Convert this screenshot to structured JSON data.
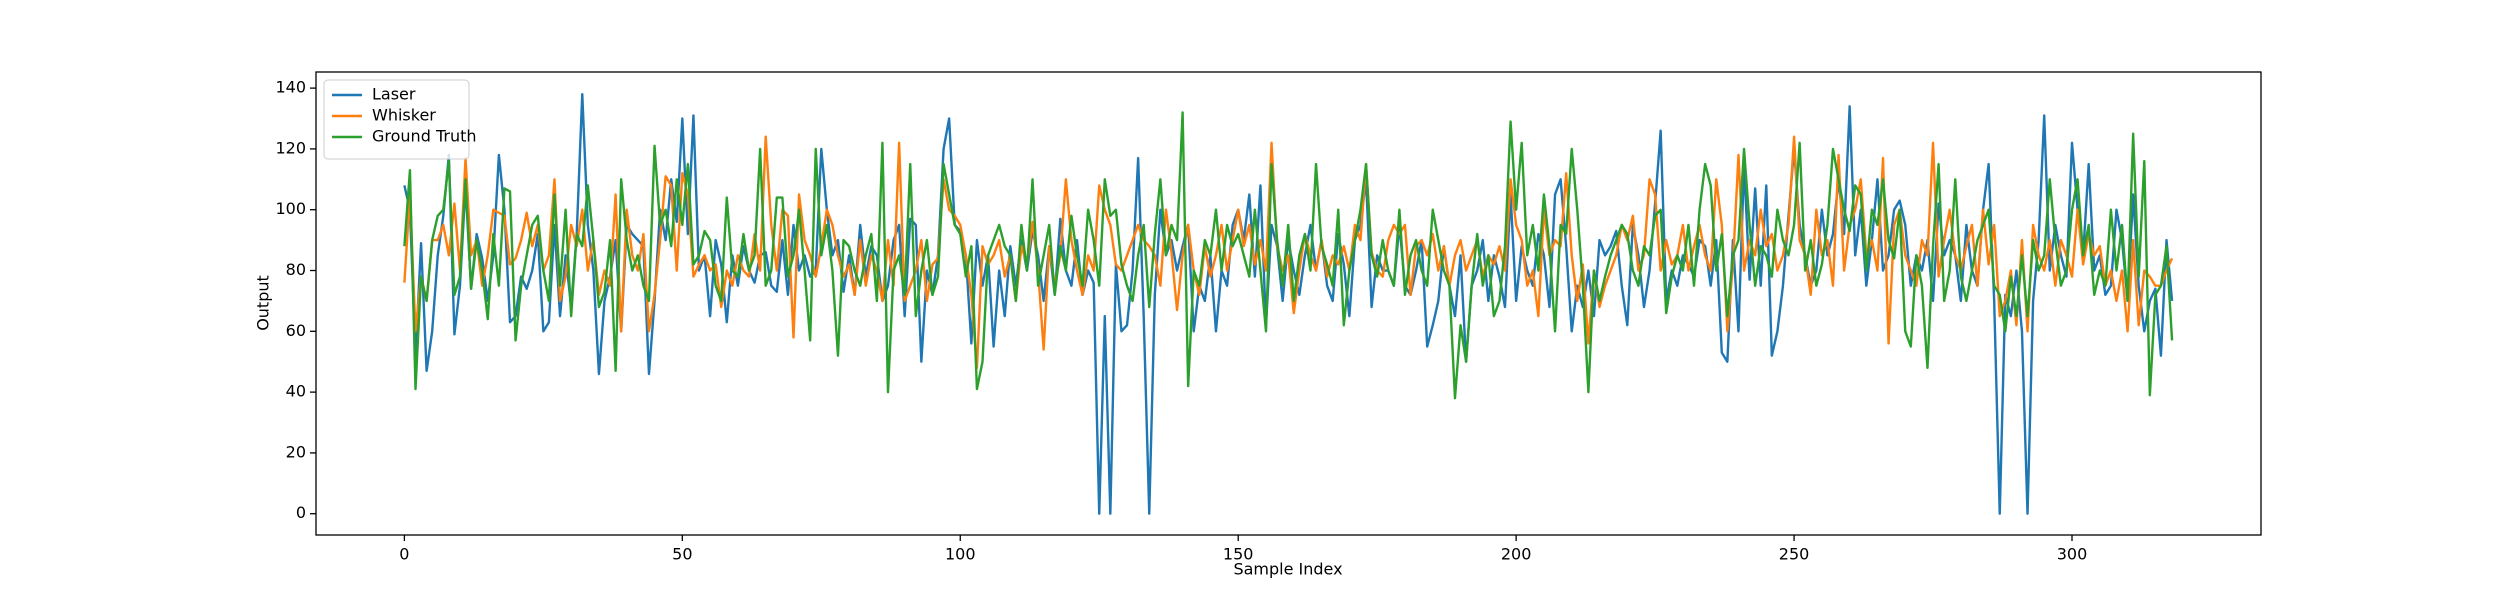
{
  "chart_data": {
    "type": "line",
    "xlabel": "Sample Index",
    "ylabel": "Output",
    "xlim": [
      -15.9,
      334
    ],
    "xticks": [
      0,
      50,
      100,
      150,
      200,
      250,
      300
    ],
    "ylim": [
      -7,
      145.3
    ],
    "yticks": [
      0,
      20,
      40,
      60,
      80,
      100,
      120,
      140
    ],
    "legend": "upper left",
    "x": [
      0,
      1,
      2,
      3,
      4,
      5,
      6,
      7,
      8,
      9,
      10,
      11,
      12,
      13,
      14,
      15,
      16,
      17,
      18,
      19,
      20,
      21,
      22,
      23,
      24,
      25,
      26,
      27,
      28,
      29,
      30,
      31,
      32,
      33,
      34,
      35,
      36,
      37,
      38,
      39,
      40,
      41,
      42,
      43,
      44,
      45,
      46,
      47,
      48,
      49,
      50,
      51,
      52,
      53,
      54,
      55,
      56,
      57,
      58,
      59,
      60,
      61,
      62,
      63,
      64,
      65,
      66,
      67,
      68,
      69,
      70,
      71,
      72,
      73,
      74,
      75,
      76,
      77,
      78,
      79,
      80,
      81,
      82,
      83,
      84,
      85,
      86,
      87,
      88,
      89,
      90,
      91,
      92,
      93,
      94,
      95,
      96,
      97,
      98,
      99,
      100,
      101,
      102,
      103,
      104,
      105,
      106,
      107,
      108,
      109,
      110,
      111,
      112,
      113,
      114,
      115,
      116,
      117,
      118,
      119,
      120,
      121,
      122,
      123,
      124,
      125,
      126,
      127,
      128,
      129,
      130,
      131,
      132,
      133,
      134,
      135,
      136,
      137,
      138,
      139,
      140,
      141,
      142,
      143,
      144,
      145,
      146,
      147,
      148,
      149,
      150,
      151,
      152,
      153,
      154,
      155,
      156,
      157,
      158,
      159,
      160,
      161,
      162,
      163,
      164,
      165,
      166,
      167,
      168,
      169,
      170,
      171,
      172,
      173,
      174,
      175,
      176,
      177,
      178,
      179,
      180,
      181,
      182,
      183,
      184,
      185,
      186,
      187,
      188,
      189,
      190,
      191,
      192,
      193,
      194,
      195,
      196,
      197,
      198,
      199,
      200,
      201,
      202,
      203,
      204,
      205,
      206,
      207,
      208,
      209,
      210,
      211,
      212,
      213,
      214,
      215,
      216,
      217,
      218,
      219,
      220,
      221,
      222,
      223,
      224,
      225,
      226,
      227,
      228,
      229,
      230,
      231,
      232,
      233,
      234,
      235,
      236,
      237,
      238,
      239,
      240,
      241,
      242,
      243,
      244,
      245,
      246,
      247,
      248,
      249,
      250,
      251,
      252,
      253,
      254,
      255,
      256,
      257,
      258,
      259,
      260,
      261,
      262,
      263,
      264,
      265,
      266,
      267,
      268,
      269,
      270,
      271,
      272,
      273,
      274,
      275,
      276,
      277,
      278,
      279,
      280,
      281,
      282,
      283,
      284,
      285,
      286,
      287,
      288,
      289,
      290,
      291,
      292,
      293,
      294,
      295,
      296,
      297,
      298,
      299,
      300,
      301,
      302,
      303,
      304,
      305,
      306,
      307,
      308,
      309,
      310,
      311,
      312,
      313,
      314,
      315,
      316,
      317,
      318
    ],
    "series": [
      {
        "name": "Laser",
        "color": "#1f77b4",
        "values": [
          108,
          100,
          52,
          89,
          47,
          60,
          85,
          98,
          118,
          59,
          75,
          108,
          74,
          92,
          84,
          70,
          85,
          118,
          100,
          63,
          65,
          78,
          74,
          80,
          92,
          60,
          63,
          95,
          65,
          85,
          68,
          92,
          138,
          95,
          80,
          46,
          70,
          78,
          90,
          60,
          95,
          92,
          90,
          88,
          46,
          70,
          100,
          90,
          110,
          96,
          130,
          92,
          131,
          80,
          85,
          65,
          90,
          82,
          63,
          85,
          75,
          88,
          80,
          76,
          85,
          86,
          75,
          73,
          90,
          72,
          95,
          80,
          85,
          78,
          80,
          120,
          100,
          85,
          90,
          73,
          85,
          72,
          95,
          78,
          88,
          85,
          70,
          75,
          90,
          95,
          65,
          97,
          95,
          50,
          80,
          72,
          85,
          120,
          130,
          95,
          93,
          85,
          56,
          90,
          75,
          85,
          55,
          80,
          65,
          88,
          75,
          90,
          80,
          93,
          85,
          70,
          88,
          72,
          97,
          80,
          75,
          90,
          72,
          80,
          76,
          0,
          65,
          0,
          82,
          60,
          62,
          80,
          117,
          65,
          0,
          72,
          100,
          85,
          90,
          80,
          88,
          95,
          60,
          75,
          70,
          85,
          60,
          80,
          75,
          95,
          100,
          90,
          105,
          78,
          108,
          62,
          95,
          88,
          70,
          90,
          80,
          72,
          85,
          95,
          80,
          90,
          75,
          70,
          92,
          82,
          65,
          90,
          95,
          110,
          68,
          85,
          80,
          80,
          75,
          95,
          75,
          72,
          80,
          90,
          55,
          62,
          70,
          88,
          75,
          65,
          85,
          50,
          75,
          80,
          90,
          70,
          85,
          78,
          68,
          105,
          70,
          88,
          80,
          75,
          92,
          85,
          68,
          105,
          110,
          88,
          60,
          75,
          68,
          80,
          65,
          90,
          85,
          88,
          93,
          75,
          62,
          95,
          85,
          68,
          80,
          102,
          126,
          70,
          80,
          75,
          85,
          82,
          78,
          90,
          88,
          75,
          90,
          53,
          50,
          90,
          60,
          115,
          77,
          107,
          75,
          108,
          52,
          60,
          75,
          98,
          120,
          95,
          85,
          75,
          80,
          100,
          85,
          92,
          110,
          92,
          134,
          85,
          100,
          75,
          90,
          110,
          80,
          85,
          100,
          103,
          95,
          75,
          85,
          80,
          90,
          70,
          102,
          85,
          90,
          85,
          70,
          95,
          80,
          75,
          100,
          115,
          70,
          0,
          72,
          65,
          80,
          60,
          0,
          70,
          90,
          131,
          80,
          95,
          85,
          78,
          122,
          100,
          85,
          115,
          80,
          85,
          72,
          75,
          100,
          90,
          70,
          105,
          75,
          60,
          70,
          74,
          52,
          90,
          70
        ]
      },
      {
        "name": "Whisker",
        "color": "#ff7f0e",
        "values": [
          76,
          105,
          60,
          78,
          70,
          90,
          90,
          95,
          85,
          102,
          80,
          117,
          85,
          90,
          75,
          85,
          100,
          99,
          98,
          82,
          84,
          90,
          99,
          88,
          95,
          80,
          85,
          110,
          70,
          78,
          95,
          88,
          100,
          80,
          90,
          72,
          80,
          75,
          105,
          60,
          100,
          85,
          80,
          92,
          60,
          72,
          90,
          111,
          108,
          80,
          112,
          105,
          78,
          82,
          85,
          80,
          82,
          68,
          80,
          75,
          85,
          80,
          78,
          92,
          80,
          124,
          95,
          80,
          100,
          98,
          58,
          105,
          90,
          85,
          78,
          88,
          100,
          95,
          85,
          78,
          82,
          72,
          90,
          75,
          85,
          80,
          70,
          90,
          75,
          122,
          70,
          75,
          80,
          90,
          70,
          82,
          84,
          110,
          100,
          98,
          95,
          85,
          72,
          48,
          88,
          82,
          85,
          90,
          78,
          85,
          70,
          88,
          82,
          96,
          80,
          54,
          88,
          75,
          85,
          110,
          90,
          80,
          72,
          85,
          80,
          108,
          100,
          95,
          82,
          80,
          85,
          90,
          95,
          90,
          88,
          85,
          75,
          100,
          86,
          67,
          85,
          95,
          80,
          72,
          88,
          78,
          85,
          95,
          80,
          90,
          100,
          88,
          95,
          82,
          90,
          80,
          122,
          88,
          80,
          85,
          66,
          80,
          92,
          85,
          80,
          90,
          78,
          85,
          82,
          88,
          80,
          95,
          90,
          115,
          86,
          80,
          78,
          90,
          95,
          92,
          95,
          72,
          88,
          90,
          85,
          92,
          80,
          88,
          75,
          85,
          90,
          80,
          85,
          90,
          78,
          85,
          82,
          88,
          80,
          110,
          95,
          90,
          75,
          80,
          65,
          100,
          85,
          90,
          88,
          112,
          85,
          70,
          82,
          56,
          80,
          68,
          75,
          80,
          85,
          95,
          90,
          98,
          80,
          85,
          110,
          105,
          80,
          90,
          82,
          85,
          95,
          80,
          88,
          95,
          85,
          80,
          110,
          95,
          60,
          82,
          118,
          80,
          90,
          85,
          100,
          88,
          92,
          80,
          85,
          95,
          124,
          90,
          85,
          72,
          100,
          85,
          90,
          75,
          118,
          80,
          95,
          100,
          110,
          85,
          90,
          80,
          117,
          56,
          95,
          100,
          85,
          80,
          75,
          90,
          85,
          122,
          78,
          90,
          100,
          85,
          80,
          88,
          95,
          75,
          100,
          82,
          95,
          65,
          70,
          80,
          62,
          90,
          60,
          95,
          85,
          80,
          90,
          75,
          90,
          85,
          78,
          100,
          82,
          92,
          85,
          88,
          75,
          80,
          70,
          80,
          60,
          90,
          62,
          80,
          78,
          75,
          75,
          80,
          84
        ]
      },
      {
        "name": "Ground Truth",
        "color": "#2ca02c",
        "values": [
          88,
          113,
          41,
          78,
          70,
          90,
          98,
          100,
          116,
          72,
          78,
          110,
          74,
          90,
          80,
          64,
          92,
          75,
          107,
          106,
          57,
          75,
          85,
          95,
          98,
          80,
          70,
          105,
          75,
          100,
          65,
          92,
          88,
          108,
          90,
          68,
          73,
          90,
          47,
          110,
          90,
          80,
          85,
          75,
          70,
          121,
          95,
          100,
          88,
          110,
          95,
          115,
          82,
          85,
          93,
          90,
          75,
          70,
          104,
          80,
          78,
          92,
          80,
          85,
          120,
          75,
          80,
          104,
          104,
          78,
          85,
          100,
          80,
          57,
          120,
          85,
          95,
          80,
          52,
          90,
          88,
          80,
          75,
          85,
          92,
          70,
          122,
          40,
          80,
          85,
          72,
          115,
          65,
          80,
          90,
          72,
          78,
          115,
          105,
          95,
          92,
          78,
          88,
          41,
          50,
          85,
          90,
          95,
          88,
          85,
          70,
          95,
          80,
          110,
          75,
          85,
          95,
          72,
          88,
          80,
          98,
          85,
          75,
          100,
          90,
          75,
          110,
          98,
          100,
          82,
          75,
          70,
          85,
          95,
          68,
          92,
          110,
          85,
          95,
          90,
          132,
          42,
          80,
          75,
          90,
          85,
          100,
          80,
          95,
          88,
          92,
          85,
          78,
          100,
          80,
          60,
          115,
          90,
          75,
          95,
          70,
          85,
          92,
          80,
          115,
          88,
          82,
          75,
          100,
          62,
          80,
          90,
          100,
          115,
          85,
          78,
          90,
          80,
          75,
          100,
          72,
          85,
          90,
          80,
          75,
          100,
          90,
          80,
          75,
          38,
          62,
          50,
          75,
          92,
          75,
          85,
          65,
          70,
          88,
          129,
          100,
          122,
          85,
          95,
          80,
          105,
          88,
          60,
          95,
          92,
          120,
          100,
          75,
          40,
          80,
          70,
          78,
          85,
          90,
          95,
          92,
          80,
          75,
          88,
          85,
          98,
          100,
          66,
          78,
          85,
          80,
          95,
          75,
          100,
          115,
          108,
          80,
          92,
          65,
          85,
          90,
          120,
          95,
          75,
          88,
          85,
          78,
          100,
          90,
          85,
          95,
          122,
          80,
          90,
          75,
          82,
          95,
          120,
          110,
          100,
          93,
          108,
          105,
          80,
          100,
          95,
          110,
          90,
          84,
          100,
          60,
          55,
          85,
          75,
          48,
          88,
          115,
          70,
          80,
          110,
          78,
          70,
          80,
          90,
          95,
          100,
          75,
          72,
          60,
          78,
          65,
          85,
          65,
          90,
          80,
          85,
          110,
          90,
          75,
          80,
          100,
          110,
          85,
          95,
          72,
          80,
          75,
          100,
          80,
          95,
          70,
          125,
          78,
          116,
          39,
          72,
          75,
          88,
          57
        ]
      }
    ]
  }
}
